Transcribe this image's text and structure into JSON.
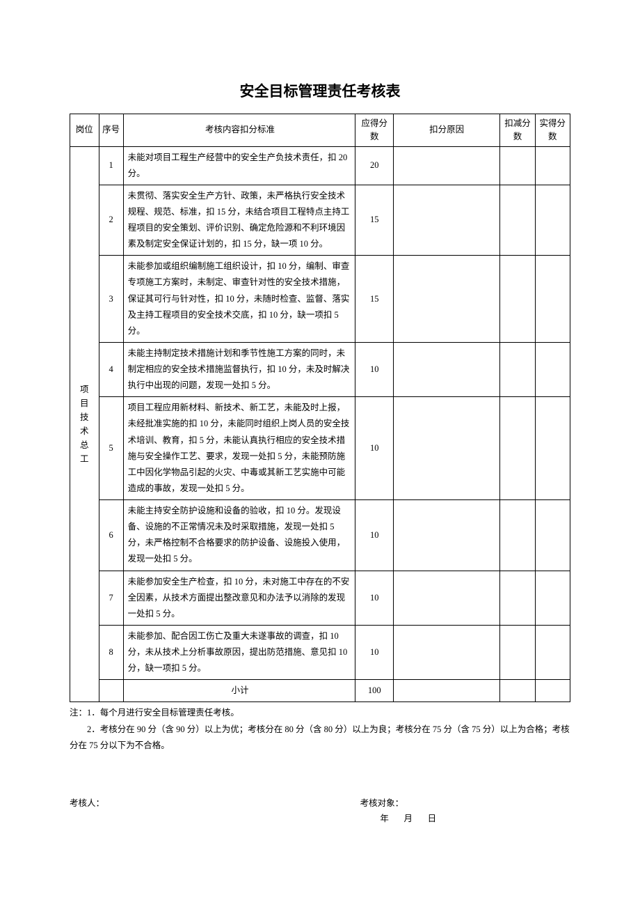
{
  "title": "安全目标管理责任考核表",
  "table": {
    "columns": [
      "岗位",
      "序号",
      "考核内容扣分标准",
      "应得分数",
      "扣分原因",
      "扣减分数",
      "实得分数"
    ],
    "post_label": "项目技术总工",
    "rows": [
      {
        "idx": "1",
        "content": "未能对项目工程生产经营中的安全生产负技术责任，扣 20 分。",
        "score": "20"
      },
      {
        "idx": "2",
        "content": "未贯彻、落实安全生产方针、政策，未严格执行安全技术规程、规范、标准，扣 15 分，未结合项目工程特点主持工程项目的安全策划、评价识别、确定危险源和不利环境因素及制定安全保证计划的，扣 15 分，缺一项 10 分。",
        "score": "15"
      },
      {
        "idx": "3",
        "content": "未能参加或组织编制施工组织设计，扣 10 分，编制、审查专项施工方案时，未制定、审查针对性的安全技术措施，保证其可行与针对性，扣 10 分，未随时检查、监督、落实及主持工程项目的安全技术交底，扣 10 分，缺一项扣 5 分。",
        "score": "15"
      },
      {
        "idx": "4",
        "content": "未能主持制定技术措施计划和季节性施工方案的同时，未制定相应的安全技术措施监督执行，扣 10 分，未及时解决执行中出现的问题，发现一处扣 5 分。",
        "score": "10"
      },
      {
        "idx": "5",
        "content": "项目工程应用新材料、新技术、新工艺，未能及时上报，未经批准实施的扣 10 分，未能同时组织上岗人员的安全技术培训、教育，扣 5 分，未能认真执行相应的安全技术措施与安全操作工艺、要求，发现一处扣 5 分，未能预防施工中因化学物品引起的火灾、中毒或其新工艺实施中可能造成的事故，发现一处扣 5 分。",
        "score": "10"
      },
      {
        "idx": "6",
        "content": "未能主持安全防护设施和设备的验收，扣 10 分。发现设备、设施的不正常情况未及时采取措施，发现一处扣 5 分，未严格控制不合格要求的防护设备、设施投入使用，发现一处扣 5 分。",
        "score": "10"
      },
      {
        "idx": "7",
        "content": "未能参加安全生产检查，扣 10 分，未对施工中存在的不安全因素，从技术方面提出整改意见和办法予以消除的发现一处扣 5 分。",
        "score": "10"
      },
      {
        "idx": "8",
        "content": "未能参加、配合因工伤亡及重大未遂事故的调查，扣 10 分，未从技术上分析事故原因，提出防范措施、意见扣 10 分，缺一项扣 5 分。",
        "score": "10"
      }
    ],
    "subtotal_label": "小计",
    "subtotal_score": "100"
  },
  "notes": {
    "line1": "注：1．每个月进行安全目标管理责任考核。",
    "line2": "　　2．考核分在 90 分（含 90 分）以上为优；考核分在 80 分（含 80 分）以上为良；考核分在 75 分（含 75 分）以上为合格；考核分在 75 分以下为不合格。"
  },
  "sign": {
    "assessor": "考核人：",
    "target": "考核对象：",
    "date": "年　 月　 日"
  }
}
